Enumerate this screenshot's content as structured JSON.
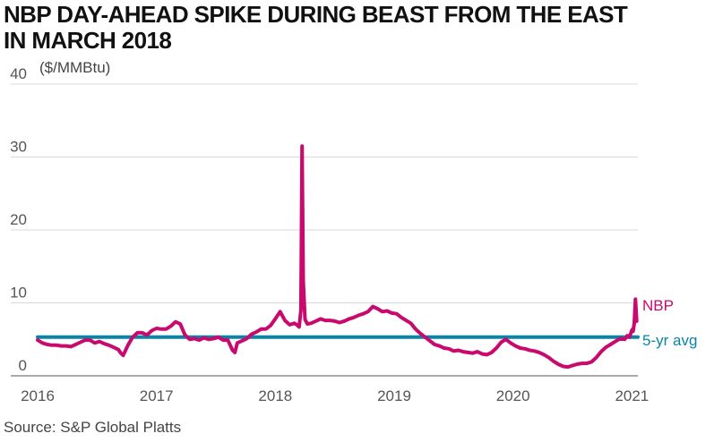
{
  "title_lines": [
    "NBP DAY-AHEAD SPIKE DURING BEAST FROM THE EAST",
    "IN MARCH 2018"
  ],
  "unit_label": "($/MMBtu)",
  "source": "Source: S&P Global Platts",
  "colors": {
    "nbp": "#c8096e",
    "avg": "#0a84a8"
  },
  "chart_data": {
    "type": "line",
    "title": "NBP DAY-AHEAD SPIKE DURING BEAST FROM THE EAST IN MARCH 2018",
    "ylabel": "($/MMBtu)",
    "xlabel": "",
    "x_range": [
      2016.0,
      2021.05
    ],
    "ylim": [
      0,
      40
    ],
    "y_ticks": [
      "0",
      "10",
      "20",
      "30",
      "40"
    ],
    "x_ticks": [
      "2016",
      "2017",
      "2018",
      "2019",
      "2020",
      "2021"
    ],
    "grid": true,
    "series": [
      {
        "name": "NBP",
        "x": [
          2016.0,
          2016.04,
          2016.08,
          2016.12,
          2016.16,
          2016.2,
          2016.24,
          2016.28,
          2016.32,
          2016.36,
          2016.4,
          2016.44,
          2016.48,
          2016.52,
          2016.56,
          2016.6,
          2016.64,
          2016.68,
          2016.7,
          2016.72,
          2016.76,
          2016.8,
          2016.84,
          2016.88,
          2016.92,
          2016.96,
          2017.0,
          2017.04,
          2017.08,
          2017.12,
          2017.16,
          2017.2,
          2017.24,
          2017.28,
          2017.32,
          2017.36,
          2017.4,
          2017.44,
          2017.48,
          2017.52,
          2017.56,
          2017.6,
          2017.64,
          2017.66,
          2017.68,
          2017.72,
          2017.76,
          2017.8,
          2017.84,
          2017.88,
          2017.92,
          2017.96,
          2018.0,
          2018.04,
          2018.08,
          2018.12,
          2018.16,
          2018.18,
          2018.2,
          2018.215,
          2018.225,
          2018.235,
          2018.25,
          2018.27,
          2018.3,
          2018.34,
          2018.38,
          2018.42,
          2018.46,
          2018.5,
          2018.54,
          2018.58,
          2018.62,
          2018.66,
          2018.7,
          2018.74,
          2018.78,
          2018.82,
          2018.86,
          2018.9,
          2018.94,
          2018.98,
          2019.02,
          2019.06,
          2019.1,
          2019.14,
          2019.18,
          2019.22,
          2019.26,
          2019.3,
          2019.34,
          2019.38,
          2019.42,
          2019.46,
          2019.5,
          2019.54,
          2019.58,
          2019.62,
          2019.66,
          2019.7,
          2019.74,
          2019.78,
          2019.82,
          2019.86,
          2019.9,
          2019.94,
          2019.98,
          2020.02,
          2020.06,
          2020.1,
          2020.14,
          2020.18,
          2020.22,
          2020.26,
          2020.3,
          2020.34,
          2020.38,
          2020.42,
          2020.46,
          2020.5,
          2020.54,
          2020.58,
          2020.62,
          2020.66,
          2020.7,
          2020.74,
          2020.78,
          2020.82,
          2020.86,
          2020.9,
          2020.94,
          2020.96,
          2020.98,
          2021.0,
          2021.01,
          2021.02,
          2021.03,
          2021.04
        ],
        "values": [
          4.9,
          4.5,
          4.3,
          4.2,
          4.2,
          4.1,
          4.1,
          4.0,
          4.3,
          4.6,
          4.9,
          4.9,
          4.5,
          4.7,
          4.4,
          4.2,
          3.9,
          3.6,
          3.1,
          2.8,
          4.2,
          5.3,
          5.9,
          5.9,
          5.6,
          6.2,
          6.5,
          6.4,
          6.4,
          6.8,
          7.4,
          7.1,
          5.6,
          5.0,
          5.1,
          4.9,
          5.2,
          5.0,
          5.1,
          5.3,
          4.9,
          4.9,
          3.5,
          3.2,
          4.5,
          4.8,
          5.1,
          5.7,
          6.0,
          6.4,
          6.4,
          6.9,
          7.8,
          8.8,
          7.6,
          7.0,
          7.2,
          7.0,
          6.7,
          9.0,
          31.5,
          13.0,
          7.7,
          7.1,
          7.2,
          7.5,
          7.8,
          7.6,
          7.6,
          7.5,
          7.3,
          7.5,
          7.8,
          8.0,
          8.3,
          8.5,
          8.8,
          9.5,
          9.2,
          8.8,
          8.9,
          8.6,
          8.5,
          8.0,
          7.6,
          7.2,
          6.4,
          5.8,
          5.3,
          4.8,
          4.3,
          4.1,
          3.8,
          3.7,
          3.4,
          3.5,
          3.3,
          3.2,
          3.1,
          3.3,
          3.0,
          2.9,
          3.2,
          3.8,
          4.6,
          5.0,
          4.5,
          4.1,
          3.8,
          3.7,
          3.5,
          3.4,
          3.2,
          2.9,
          2.5,
          2.0,
          1.6,
          1.3,
          1.2,
          1.4,
          1.6,
          1.7,
          1.7,
          1.9,
          2.5,
          3.3,
          3.9,
          4.3,
          4.7,
          5.1,
          5.0,
          5.5,
          5.3,
          6.3,
          6.1,
          7.2,
          10.5,
          7.5
        ]
      },
      {
        "name": "5-yr avg",
        "x": [
          2016.0,
          2021.05
        ],
        "values": [
          5.3,
          5.3
        ]
      }
    ],
    "legend": "right"
  }
}
